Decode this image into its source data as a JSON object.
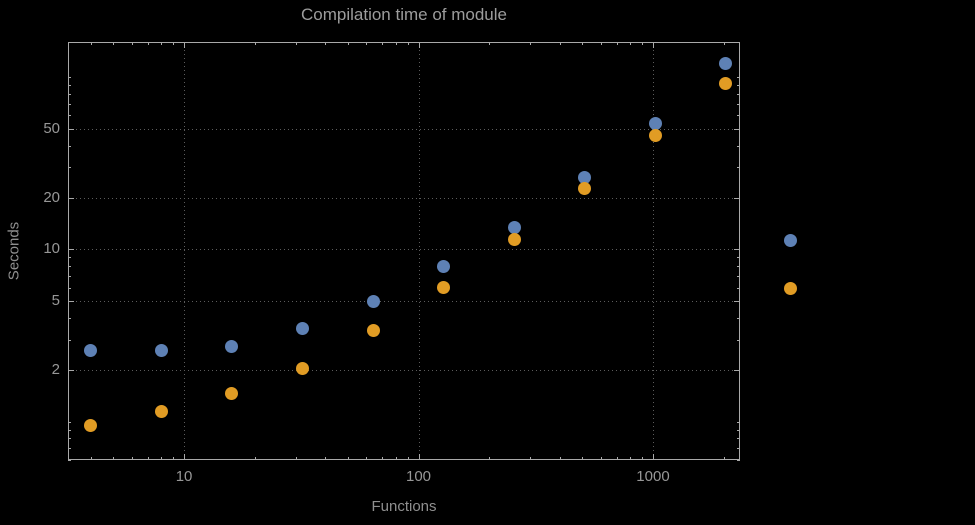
{
  "title": "Compilation time of module",
  "colors": {
    "background": "#000000",
    "frame": "#a9a9a9",
    "grid": "#5c5c5c",
    "title_text": "#9c9c9c",
    "tick_text": "#979797",
    "axis_label_text": "#8f8f8f",
    "series1": "#5e81b5",
    "series2": "#e19c24"
  },
  "chart_data": {
    "type": "scatter",
    "title": "Compilation time of module",
    "xlabel": "Functions",
    "ylabel": "Seconds",
    "x_scale": "log",
    "y_scale": "log",
    "xlim": [
      3.2,
      2350
    ],
    "ylim": [
      0.6,
      160
    ],
    "x_ticks": [
      10,
      100,
      1000
    ],
    "y_ticks": [
      2,
      5,
      10,
      20,
      50
    ],
    "grid": "dotted gridlines at major ticks",
    "legend": "two color swatches right of frame, no visible label text",
    "x": [
      4,
      8,
      16,
      32,
      64,
      128,
      256,
      512,
      1024,
      2048
    ],
    "series": [
      {
        "name": "series-1-blue",
        "color": "#5e81b5",
        "values": [
          2.6,
          2.6,
          2.75,
          3.5,
          5.0,
          8.0,
          13.5,
          26,
          54,
          120
        ]
      },
      {
        "name": "series-2-orange",
        "color": "#e19c24",
        "values": [
          0.95,
          1.15,
          1.45,
          2.05,
          3.4,
          6.0,
          11.5,
          22.5,
          46,
          92
        ]
      }
    ]
  }
}
